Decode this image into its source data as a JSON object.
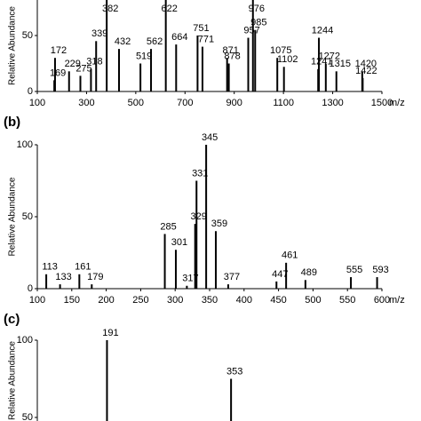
{
  "chart_data": [
    {
      "type": "bar",
      "y_label": "Relative Abundance",
      "x_label": "m/z",
      "color": "#000000",
      "x": [
        169,
        172,
        229,
        275,
        318,
        339,
        382,
        432,
        519,
        562,
        622,
        664,
        751,
        771,
        871,
        878,
        957,
        976,
        985,
        1075,
        1102,
        1241,
        1244,
        1272,
        1315,
        1420,
        1422
      ],
      "values": [
        10,
        30,
        18,
        14,
        20,
        45,
        90,
        38,
        25,
        38,
        100,
        42,
        50,
        40,
        30,
        25,
        48,
        100,
        55,
        30,
        22,
        20,
        48,
        25,
        18,
        18,
        12
      ],
      "xlim": [
        100,
        1500
      ],
      "xticks": [
        100,
        300,
        500,
        700,
        900,
        1100,
        1300,
        1500
      ],
      "ylim": [
        0,
        100
      ],
      "yticks": [
        0,
        50
      ]
    },
    {
      "type": "bar",
      "title": "(b)",
      "y_label": "Relative Abundance",
      "x_label": "m/z",
      "color": "#000000",
      "x": [
        113,
        133,
        161,
        179,
        285,
        301,
        317,
        329,
        331,
        345,
        359,
        377,
        447,
        461,
        489,
        555,
        593
      ],
      "values": [
        10,
        3,
        10,
        3,
        38,
        27,
        2,
        45,
        75,
        100,
        40,
        3,
        5,
        18,
        6,
        8,
        8
      ],
      "xlim": [
        100,
        600
      ],
      "xticks": [
        100,
        150,
        200,
        250,
        300,
        350,
        400,
        450,
        500,
        550,
        600
      ],
      "ylim": [
        0,
        100
      ],
      "yticks": [
        0,
        50,
        100
      ]
    },
    {
      "type": "bar",
      "title": "(c)",
      "y_label": "Relative Abundance",
      "color": "#000000",
      "x": [
        191,
        353
      ],
      "values": [
        100,
        75
      ],
      "xlim": [
        100,
        550
      ],
      "ylim": [
        0,
        100
      ],
      "yticks": [
        50,
        100
      ]
    }
  ]
}
